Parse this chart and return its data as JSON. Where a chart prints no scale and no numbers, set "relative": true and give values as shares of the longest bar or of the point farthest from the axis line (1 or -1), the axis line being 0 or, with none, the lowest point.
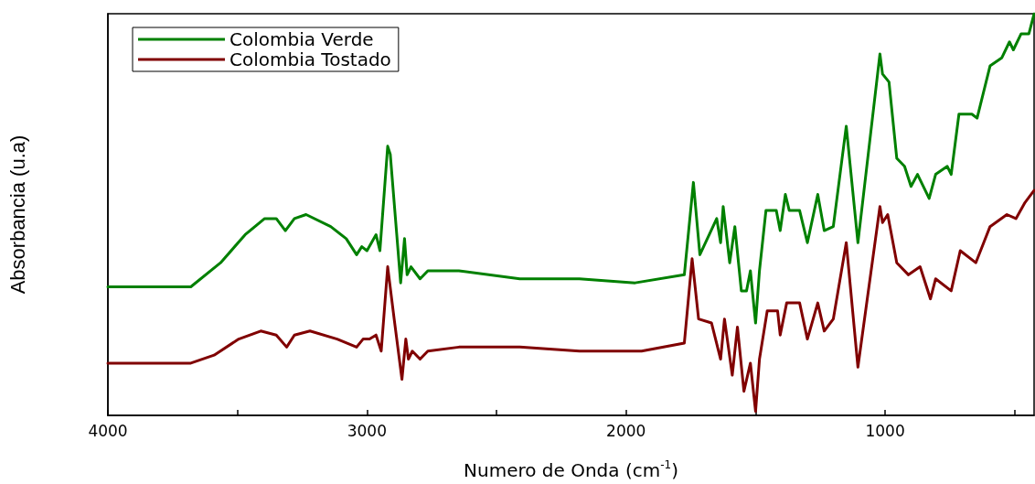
{
  "chart_data": {
    "type": "line",
    "relative": true,
    "xlabel": "Numero de Onda (cm$^{-1}$)",
    "ylabel": "Absorbancia (u.a)",
    "xlim": [
      4000,
      425
    ],
    "xticks": [
      4000,
      {
        "value": 3500,
        "label": null
      },
      3000,
      {
        "value": 2500,
        "label": null
      },
      2000,
      {
        "value": 1500,
        "label": null
      },
      1000,
      {
        "value": 500,
        "label": null
      }
    ],
    "legend": "top left",
    "grid": false,
    "marker": "none",
    "line_style": "solid",
    "series": [
      {
        "name": "Colombia Verde",
        "color": "#008000",
        "x": [
          4000,
          3680,
          3565,
          3470,
          3395,
          3350,
          3315,
          3280,
          3235,
          3140,
          3080,
          3040,
          3020,
          3000,
          2965,
          2950,
          2920,
          2910,
          2870,
          2855,
          2845,
          2830,
          2795,
          2765,
          2645,
          2410,
          2180,
          1965,
          1775,
          1740,
          1715,
          1650,
          1635,
          1625,
          1600,
          1580,
          1555,
          1535,
          1520,
          1500,
          1485,
          1460,
          1420,
          1405,
          1385,
          1370,
          1330,
          1300,
          1260,
          1235,
          1200,
          1150,
          1105,
          1020,
          1010,
          985,
          955,
          925,
          900,
          875,
          830,
          805,
          760,
          745,
          715,
          665,
          645,
          595,
          550,
          520,
          505,
          475,
          445,
          425
        ],
        "values": [
          0.32,
          0.32,
          0.38,
          0.45,
          0.49,
          0.49,
          0.46,
          0.49,
          0.5,
          0.47,
          0.44,
          0.4,
          0.42,
          0.41,
          0.45,
          0.41,
          0.67,
          0.65,
          0.33,
          0.44,
          0.35,
          0.37,
          0.34,
          0.36,
          0.36,
          0.34,
          0.34,
          0.33,
          0.35,
          0.58,
          0.4,
          0.49,
          0.43,
          0.52,
          0.38,
          0.47,
          0.31,
          0.31,
          0.36,
          0.23,
          0.36,
          0.51,
          0.51,
          0.46,
          0.55,
          0.51,
          0.51,
          0.43,
          0.55,
          0.46,
          0.47,
          0.72,
          0.43,
          0.9,
          0.85,
          0.83,
          0.64,
          0.62,
          0.57,
          0.6,
          0.54,
          0.6,
          0.62,
          0.6,
          0.75,
          0.75,
          0.74,
          0.87,
          0.89,
          0.93,
          0.91,
          0.95,
          0.95,
          1
        ]
      },
      {
        "name": "Colombia Tostado",
        "color": "#800000",
        "x": [
          4000,
          3680,
          3590,
          3495,
          3410,
          3350,
          3310,
          3280,
          3220,
          3115,
          3040,
          3015,
          2990,
          2965,
          2945,
          2920,
          2895,
          2865,
          2850,
          2840,
          2825,
          2795,
          2765,
          2645,
          2410,
          2180,
          1940,
          1775,
          1745,
          1720,
          1670,
          1635,
          1620,
          1590,
          1570,
          1545,
          1520,
          1500,
          1485,
          1455,
          1415,
          1405,
          1380,
          1330,
          1300,
          1260,
          1235,
          1200,
          1150,
          1105,
          1020,
          1010,
          990,
          955,
          910,
          865,
          825,
          805,
          745,
          710,
          650,
          595,
          530,
          495,
          460,
          425
        ],
        "values": [
          0.13,
          0.13,
          0.15,
          0.19,
          0.21,
          0.2,
          0.17,
          0.2,
          0.21,
          0.19,
          0.17,
          0.19,
          0.19,
          0.2,
          0.16,
          0.37,
          0.24,
          0.09,
          0.19,
          0.14,
          0.16,
          0.14,
          0.16,
          0.17,
          0.17,
          0.16,
          0.16,
          0.18,
          0.39,
          0.24,
          0.23,
          0.14,
          0.24,
          0.1,
          0.22,
          0.06,
          0.13,
          0.01,
          0.14,
          0.26,
          0.26,
          0.2,
          0.28,
          0.28,
          0.19,
          0.28,
          0.21,
          0.24,
          0.43,
          0.12,
          0.52,
          0.48,
          0.5,
          0.38,
          0.35,
          0.37,
          0.29,
          0.34,
          0.31,
          0.41,
          0.38,
          0.47,
          0.5,
          0.49,
          0.53,
          0.56
        ]
      }
    ]
  }
}
